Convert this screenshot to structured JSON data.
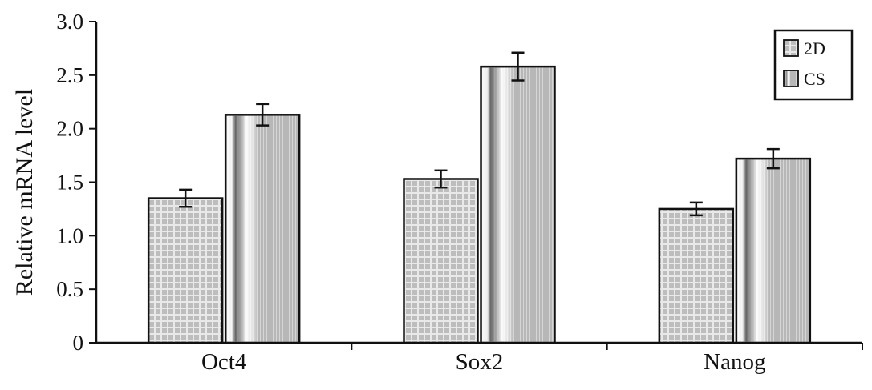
{
  "chart_data": {
    "type": "bar",
    "title": "",
    "xlabel": "",
    "ylabel": "Relative  mRNA  level",
    "categories": [
      "Oct4",
      "Sox2",
      "Nanog"
    ],
    "series": [
      {
        "name": "2D",
        "values": [
          1.35,
          1.53,
          1.25
        ],
        "errors": [
          0.08,
          0.08,
          0.06
        ],
        "pattern": "grid"
      },
      {
        "name": "CS",
        "values": [
          2.13,
          2.58,
          1.72
        ],
        "errors": [
          0.1,
          0.13,
          0.09
        ],
        "pattern": "stripes"
      }
    ],
    "ylim": [
      0,
      3.0
    ],
    "yticks": [
      {
        "value": 0,
        "label": "0"
      },
      {
        "value": 0.5,
        "label": "0.5"
      },
      {
        "value": 1.0,
        "label": "1.0"
      },
      {
        "value": 1.5,
        "label": "1.5"
      },
      {
        "value": 2.0,
        "label": "2.0"
      },
      {
        "value": 2.5,
        "label": "2.5"
      },
      {
        "value": 3.0,
        "label": "3.0"
      }
    ],
    "grid": false,
    "legend": {
      "position": "top-right",
      "boxed": true
    },
    "colors": {
      "axis": "#111111",
      "bar_edge": "#111111",
      "fill_2d": "#b9b9b9",
      "fill_cs": "#b0b0b0"
    }
  }
}
